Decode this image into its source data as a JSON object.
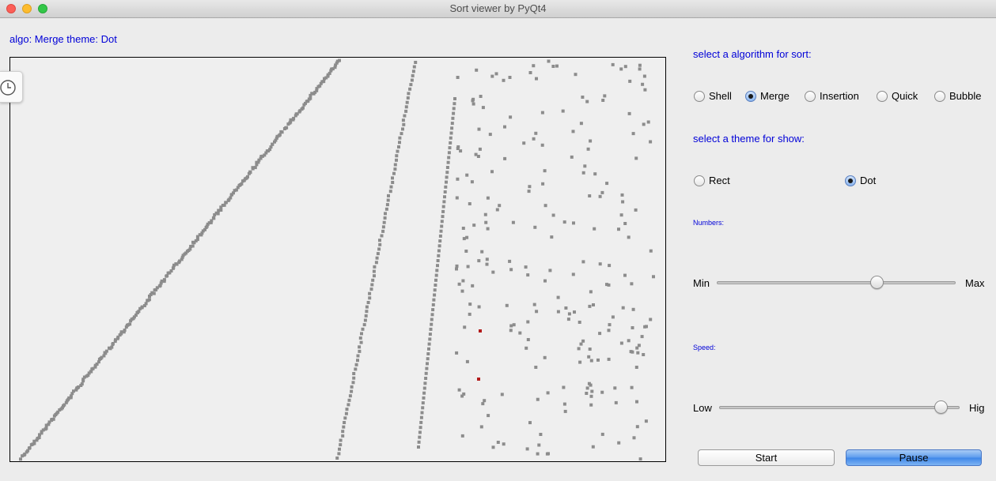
{
  "window": {
    "title": "Sort viewer by PyQt4"
  },
  "status": {
    "text": "algo: Merge theme: Dot"
  },
  "controls": {
    "algo_heading": "select a algorithm for sort:",
    "algorithms": [
      {
        "label": "Shell",
        "checked": false
      },
      {
        "label": "Merge",
        "checked": true
      },
      {
        "label": "Insertion",
        "checked": false
      },
      {
        "label": "Quick",
        "checked": false
      },
      {
        "label": "Bubble",
        "checked": false
      }
    ],
    "theme_heading": "select a theme for show:",
    "themes": [
      {
        "label": "Rect",
        "checked": false
      },
      {
        "label": "Dot",
        "checked": true
      }
    ],
    "numbers": {
      "label": "Numbers:",
      "min_label": "Min",
      "max_label": "Max",
      "value": 0.67
    },
    "speed": {
      "label": "Speed:",
      "min_label": "Low",
      "max_label": "Hig",
      "value": 0.92
    },
    "start_label": "Start",
    "pause_label": "Pause"
  },
  "colors": {
    "dot": "#8c8c8c",
    "highlight": "#b31b1b",
    "label_blue": "#0000d8"
  },
  "icons": {
    "side_tab": "clock-icon"
  }
}
